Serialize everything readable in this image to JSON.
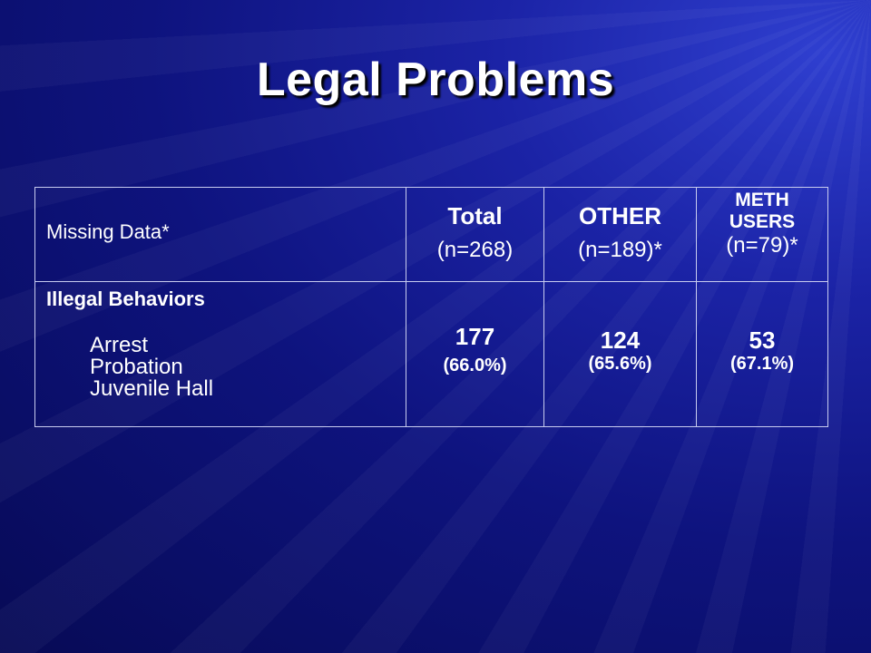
{
  "slide": {
    "title": "Legal Problems"
  },
  "table": {
    "header": {
      "label": "Missing Data*",
      "columns": [
        {
          "name": "Total",
          "n": "(n=268)"
        },
        {
          "name": "OTHER",
          "n": "(n=189)*"
        },
        {
          "name_line1": "METH",
          "name_line2": "USERS",
          "n": "(n=79)*"
        }
      ]
    },
    "row": {
      "category": "Illegal Behaviors",
      "items": [
        "Arrest",
        "Probation",
        "Juvenile Hall"
      ],
      "values": [
        {
          "count": "177",
          "percent": "(66.0%)"
        },
        {
          "count": "124",
          "percent": "(65.6%)"
        },
        {
          "count": "53",
          "percent": "(67.1%)"
        }
      ]
    }
  },
  "colors": {
    "background": "#0e137e",
    "text": "#ffffff",
    "table_border": "#c8ccef"
  }
}
